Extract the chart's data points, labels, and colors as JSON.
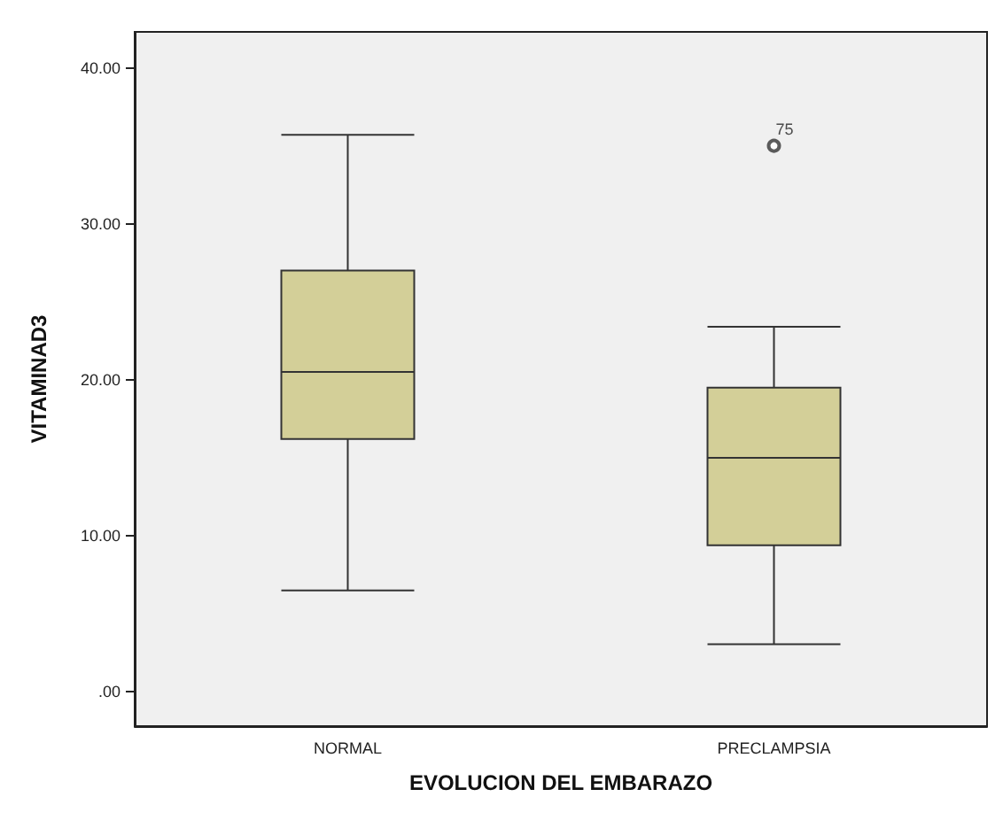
{
  "chart_data": {
    "type": "box",
    "xlabel": "EVOLUCION DEL EMBARAZO",
    "ylabel": "VITAMINAD3",
    "categories": [
      "NORMAL",
      "PRECLAMPSIA"
    ],
    "color": "#d3cf98",
    "boxes": [
      {
        "low": 6.5,
        "q1": 16.2,
        "median": 20.5,
        "q3": 27.0,
        "high": 35.7
      },
      {
        "low": 3.05,
        "q1": 9.4,
        "median": 15.0,
        "q3": 19.5,
        "high": 23.4,
        "outliers": [
          35.0
        ]
      }
    ],
    "ylim": [
      -2.2,
      42.3
    ],
    "yticks": [
      {
        "value": 0,
        "label": ".00"
      },
      {
        "value": 10,
        "label": "10.00"
      },
      {
        "value": 20,
        "label": "20.00"
      },
      {
        "value": 30,
        "label": "30.00"
      },
      {
        "value": 40,
        "label": "40.00"
      }
    ],
    "annotations": [
      "75"
    ]
  }
}
